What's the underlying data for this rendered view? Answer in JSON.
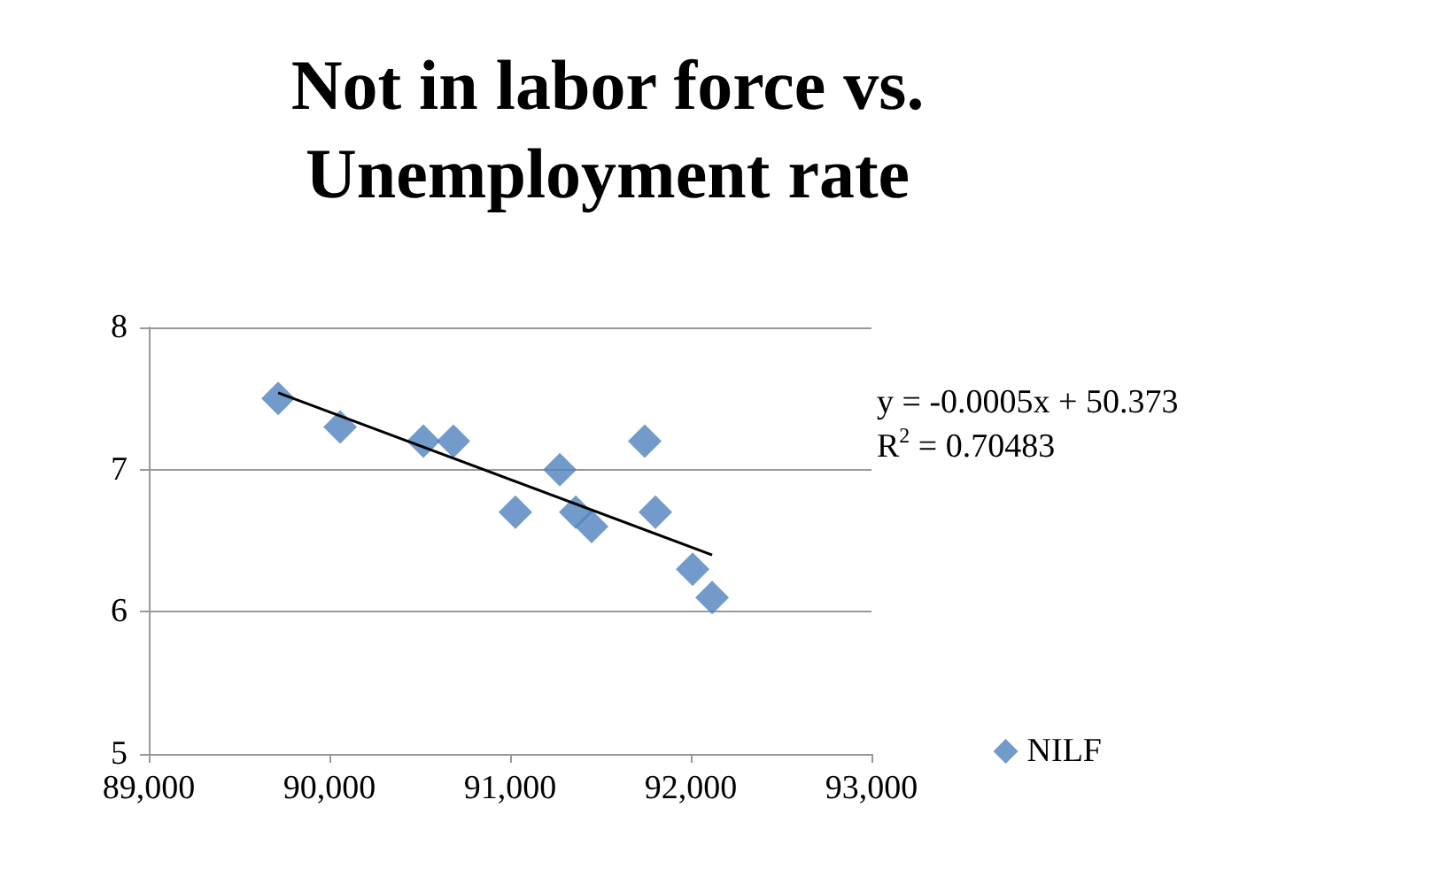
{
  "chart_data": {
    "type": "scatter",
    "title": "Not in labor force vs.\nUnemployment rate",
    "series": [
      {
        "name": "NILF",
        "color": "#4f81bd",
        "marker": "diamond",
        "x": [
          89716,
          90059,
          90520,
          90686,
          91029,
          91275,
          91363,
          91451,
          91745,
          91804,
          92010,
          92118
        ],
        "values": [
          7.5,
          7.3,
          7.2,
          7.2,
          6.7,
          7.0,
          6.7,
          6.6,
          7.2,
          6.7,
          6.3,
          6.1
        ]
      },
      {
        "type": "line",
        "color": "#000000",
        "marker": "none",
        "x": [
          89716,
          92118
        ],
        "values": [
          7.54,
          6.4
        ]
      }
    ],
    "xlim": [
      89000,
      93000
    ],
    "xticks": [
      {
        "value": 89000,
        "label": "89,000"
      },
      {
        "value": 90000,
        "label": "90,000"
      },
      {
        "value": 91000,
        "label": "91,000"
      },
      {
        "value": 92000,
        "label": "92,000"
      },
      {
        "value": 93000,
        "label": "93,000"
      }
    ],
    "ylim": [
      5,
      8
    ],
    "yticks": [
      5,
      6,
      7,
      8
    ],
    "grid": "y",
    "legend": "right",
    "annotations": [
      "y = -0.0005x + 50.373\nR$^{2}$ = 0.70483"
    ]
  }
}
